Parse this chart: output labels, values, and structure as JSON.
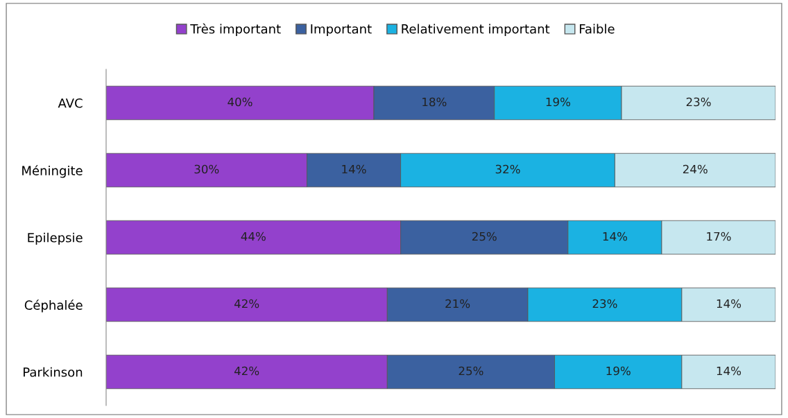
{
  "chart_data": {
    "type": "bar",
    "orientation": "horizontal",
    "stacked": true,
    "legend": "top",
    "grid": false,
    "categories": [
      "AVC",
      "Méningite",
      "Epilepsie",
      "Céphalée",
      "Parkinson"
    ],
    "series": [
      {
        "name": "Très important",
        "color": "#9341cc",
        "values": [
          40,
          30,
          44,
          42,
          42
        ],
        "value_labels": [
          "40%",
          "30%",
          "44%",
          "42%",
          "42%"
        ]
      },
      {
        "name": "Important",
        "color": "#3b61a0",
        "values": [
          18,
          14,
          25,
          21,
          25
        ],
        "value_labels": [
          "18%",
          "14%",
          "25%",
          "21%",
          "25%"
        ]
      },
      {
        "name": "Relativement important",
        "color": "#1bb2e2",
        "values": [
          19,
          32,
          14,
          23,
          19
        ],
        "value_labels": [
          "19%",
          "32%",
          "14%",
          "23%",
          "19%"
        ]
      },
      {
        "name": "Faible",
        "color": "#c6e7ef",
        "values": [
          23,
          24,
          17,
          14,
          14
        ],
        "value_labels": [
          "23%",
          "24%",
          "17%",
          "14%",
          "14%"
        ]
      }
    ]
  }
}
